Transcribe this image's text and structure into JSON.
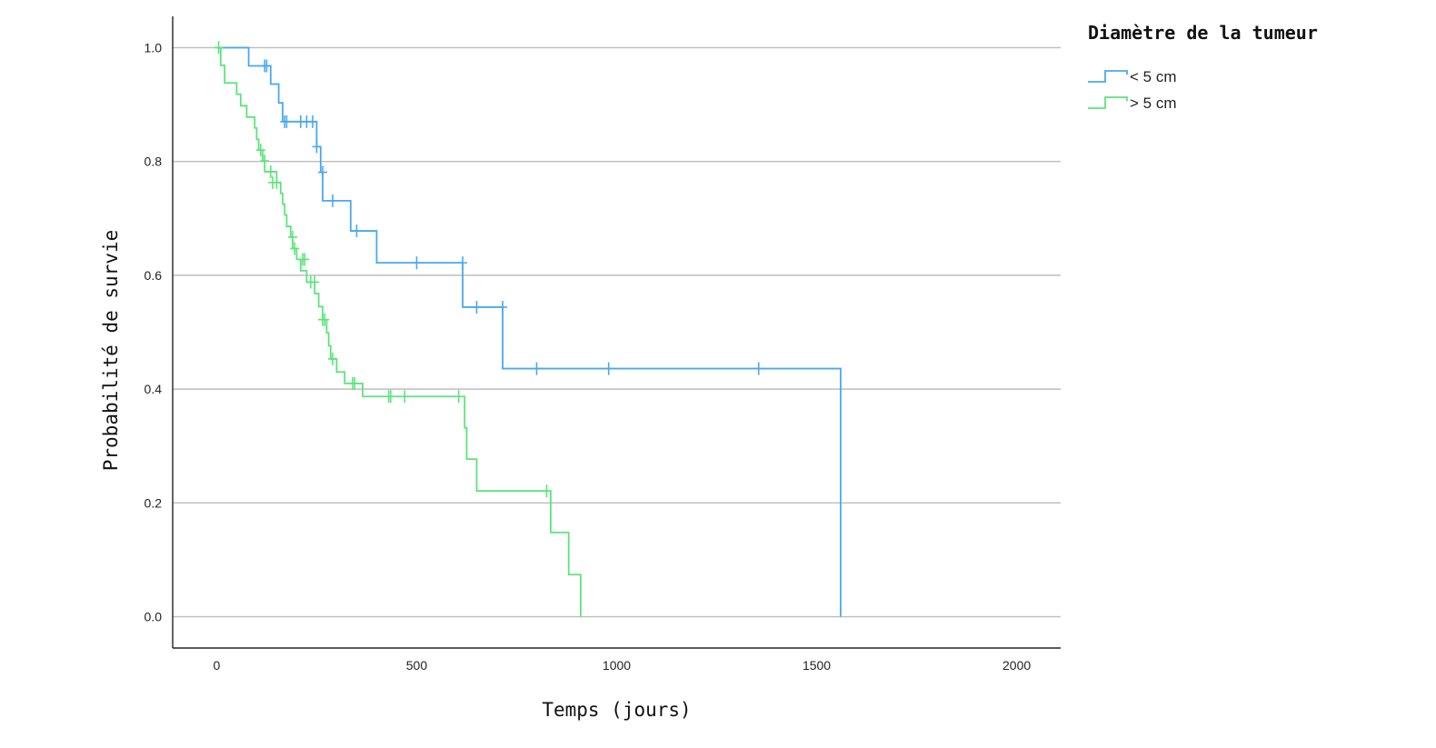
{
  "chart_data": {
    "type": "line",
    "step": true,
    "xlabel": "Temps (jours)",
    "ylabel": "Probabilité de survie",
    "xlim": [
      -110,
      2110
    ],
    "ylim": [
      -0.055,
      1.055
    ],
    "xticks": [
      0,
      500,
      1000,
      1500,
      2000
    ],
    "yticks": [
      0.0,
      0.2,
      0.4,
      0.6,
      0.8,
      1.0
    ],
    "ytick_labels": [
      "0.0",
      "0.2",
      "0.4",
      "0.6",
      "0.8",
      "1.0"
    ],
    "grid": "horizontal",
    "legend": {
      "title": "Diamètre de la tumeur",
      "placement": "top-right, outside plot"
    },
    "series": [
      {
        "name": "< 5 cm",
        "color": "#4aa9ec",
        "steps": [
          [
            0,
            1.0
          ],
          [
            80,
            0.968
          ],
          [
            135,
            0.936
          ],
          [
            155,
            0.903
          ],
          [
            165,
            0.87
          ],
          [
            250,
            0.826
          ],
          [
            260,
            0.781
          ],
          [
            265,
            0.731
          ],
          [
            335,
            0.678
          ],
          [
            400,
            0.622
          ],
          [
            615,
            0.544
          ],
          [
            715,
            0.436
          ],
          [
            1560,
            0.0
          ]
        ],
        "censored": [
          [
            120,
            0.968
          ],
          [
            125,
            0.968
          ],
          [
            170,
            0.87
          ],
          [
            175,
            0.87
          ],
          [
            210,
            0.87
          ],
          [
            225,
            0.87
          ],
          [
            240,
            0.87
          ],
          [
            250,
            0.826
          ],
          [
            265,
            0.781
          ],
          [
            290,
            0.731
          ],
          [
            350,
            0.678
          ],
          [
            500,
            0.622
          ],
          [
            615,
            0.622
          ],
          [
            650,
            0.544
          ],
          [
            715,
            0.544
          ],
          [
            800,
            0.436
          ],
          [
            980,
            0.436
          ],
          [
            1355,
            0.436
          ]
        ]
      },
      {
        "name": "> 5 cm",
        "color": "#5ee37d",
        "steps": [
          [
            0,
            1.0
          ],
          [
            10,
            0.969
          ],
          [
            20,
            0.938
          ],
          [
            50,
            0.918
          ],
          [
            60,
            0.898
          ],
          [
            75,
            0.878
          ],
          [
            95,
            0.859
          ],
          [
            100,
            0.839
          ],
          [
            105,
            0.82
          ],
          [
            115,
            0.801
          ],
          [
            120,
            0.782
          ],
          [
            150,
            0.763
          ],
          [
            160,
            0.744
          ],
          [
            165,
            0.725
          ],
          [
            170,
            0.706
          ],
          [
            175,
            0.686
          ],
          [
            185,
            0.667
          ],
          [
            190,
            0.647
          ],
          [
            200,
            0.628
          ],
          [
            210,
            0.608
          ],
          [
            225,
            0.588
          ],
          [
            245,
            0.568
          ],
          [
            255,
            0.545
          ],
          [
            265,
            0.522
          ],
          [
            275,
            0.499
          ],
          [
            280,
            0.476
          ],
          [
            285,
            0.453
          ],
          [
            300,
            0.43
          ],
          [
            320,
            0.41
          ],
          [
            365,
            0.387
          ],
          [
            620,
            0.332
          ],
          [
            625,
            0.277
          ],
          [
            650,
            0.221
          ],
          [
            835,
            0.148
          ],
          [
            880,
            0.074
          ],
          [
            910,
            0.0
          ]
        ],
        "censored": [
          [
            5,
            1.0
          ],
          [
            110,
            0.82
          ],
          [
            120,
            0.801
          ],
          [
            135,
            0.782
          ],
          [
            140,
            0.763
          ],
          [
            150,
            0.763
          ],
          [
            190,
            0.667
          ],
          [
            195,
            0.647
          ],
          [
            215,
            0.628
          ],
          [
            220,
            0.628
          ],
          [
            235,
            0.588
          ],
          [
            245,
            0.588
          ],
          [
            265,
            0.522
          ],
          [
            270,
            0.522
          ],
          [
            290,
            0.453
          ],
          [
            340,
            0.41
          ],
          [
            345,
            0.41
          ],
          [
            430,
            0.387
          ],
          [
            435,
            0.387
          ],
          [
            470,
            0.387
          ],
          [
            605,
            0.387
          ],
          [
            825,
            0.221
          ]
        ]
      }
    ]
  }
}
